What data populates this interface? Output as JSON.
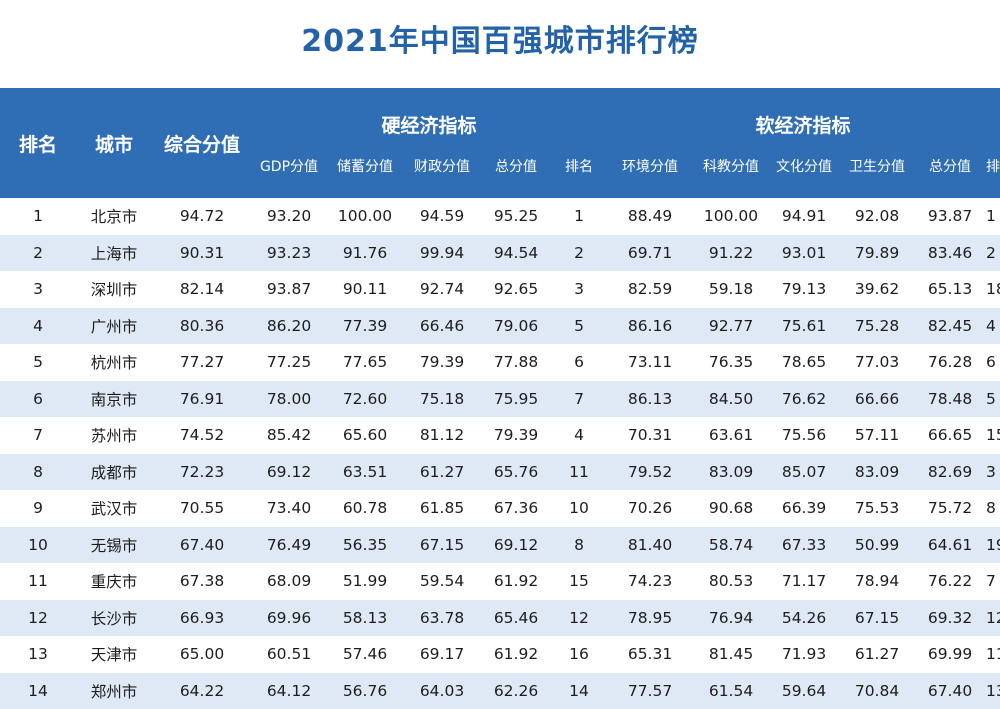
{
  "title": "2021年中国百强城市排行榜",
  "header": {
    "rank": "排名",
    "city": "城市",
    "overall": "综合分值",
    "hard_group": "硬经济指标",
    "soft_group": "软经济指标",
    "hard_cols": [
      "GDP分值",
      "储蓄分值",
      "财政分值",
      "总分值",
      "排名"
    ],
    "soft_cols": [
      "环境分值",
      "科教分值",
      "文化分值",
      "卫生分值",
      "总分值",
      "排名"
    ]
  },
  "colors": {
    "title": "#2462a8",
    "header_bg": "#2f6db5",
    "stripe": "#dfe8f5"
  },
  "rows": [
    [
      "1",
      "北京市",
      "94.72",
      "93.20",
      "100.00",
      "94.59",
      "95.25",
      "1",
      "88.49",
      "100.00",
      "94.91",
      "92.08",
      "93.87",
      "1"
    ],
    [
      "2",
      "上海市",
      "90.31",
      "93.23",
      "91.76",
      "99.94",
      "94.54",
      "2",
      "69.71",
      "91.22",
      "93.01",
      "79.89",
      "83.46",
      "2"
    ],
    [
      "3",
      "深圳市",
      "82.14",
      "93.87",
      "90.11",
      "92.74",
      "92.65",
      "3",
      "82.59",
      "59.18",
      "79.13",
      "39.62",
      "65.13",
      "18"
    ],
    [
      "4",
      "广州市",
      "80.36",
      "86.20",
      "77.39",
      "66.46",
      "79.06",
      "5",
      "86.16",
      "92.77",
      "75.61",
      "75.28",
      "82.45",
      "4"
    ],
    [
      "5",
      "杭州市",
      "77.27",
      "77.25",
      "77.65",
      "79.39",
      "77.88",
      "6",
      "73.11",
      "76.35",
      "78.65",
      "77.03",
      "76.28",
      "6"
    ],
    [
      "6",
      "南京市",
      "76.91",
      "78.00",
      "72.60",
      "75.18",
      "75.95",
      "7",
      "86.13",
      "84.50",
      "76.62",
      "66.66",
      "78.48",
      "5"
    ],
    [
      "7",
      "苏州市",
      "74.52",
      "85.42",
      "65.60",
      "81.12",
      "79.39",
      "4",
      "70.31",
      "63.61",
      "75.56",
      "57.11",
      "66.65",
      "15"
    ],
    [
      "8",
      "成都市",
      "72.23",
      "69.12",
      "63.51",
      "61.27",
      "65.76",
      "11",
      "79.52",
      "83.09",
      "85.07",
      "83.09",
      "82.69",
      "3"
    ],
    [
      "9",
      "武汉市",
      "70.55",
      "73.40",
      "60.78",
      "61.85",
      "67.36",
      "10",
      "70.26",
      "90.68",
      "66.39",
      "75.53",
      "75.72",
      "8"
    ],
    [
      "10",
      "无锡市",
      "67.40",
      "76.49",
      "56.35",
      "67.15",
      "69.12",
      "8",
      "81.40",
      "58.74",
      "67.33",
      "50.99",
      "64.61",
      "19"
    ],
    [
      "11",
      "重庆市",
      "67.38",
      "68.09",
      "51.99",
      "59.54",
      "61.92",
      "15",
      "74.23",
      "80.53",
      "71.17",
      "78.94",
      "76.22",
      "7"
    ],
    [
      "12",
      "长沙市",
      "66.93",
      "69.96",
      "58.13",
      "63.78",
      "65.46",
      "12",
      "78.95",
      "76.94",
      "54.26",
      "67.15",
      "69.32",
      "12"
    ],
    [
      "13",
      "天津市",
      "65.00",
      "60.51",
      "57.46",
      "69.17",
      "61.92",
      "16",
      "65.31",
      "81.45",
      "71.93",
      "61.27",
      "69.99",
      "11"
    ],
    [
      "14",
      "郑州市",
      "64.22",
      "64.12",
      "56.76",
      "64.03",
      "62.26",
      "14",
      "77.57",
      "61.54",
      "59.64",
      "70.84",
      "67.40",
      "13"
    ]
  ]
}
